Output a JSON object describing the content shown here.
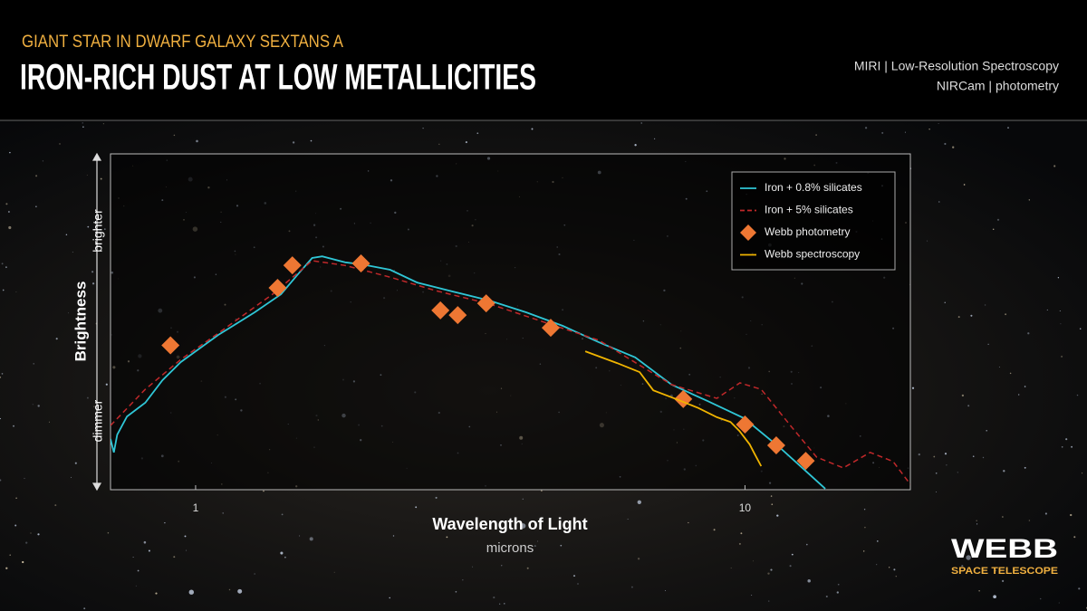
{
  "header": {
    "subtitle": "GIANT STAR IN DWARF GALAXY SEXTANS A",
    "title": "IRON-RICH DUST AT LOW METALLICITIES",
    "instruments": [
      "MIRI | Low-Resolution Spectroscopy",
      "NIRCam | photometry"
    ]
  },
  "logo": {
    "name": "WEBB",
    "tagline": "SPACE TELESCOPE"
  },
  "chart_data": {
    "type": "line",
    "x_label": "Wavelength of Light",
    "x_unit": "microns",
    "y_label": "Brightness",
    "y_high_label": "brighter",
    "y_low_label": "dimmer",
    "x_scale": "log",
    "xlim": [
      0.7,
      20
    ],
    "xticks": [
      1,
      10
    ],
    "ylim": [
      0,
      100
    ],
    "legend": "upper right",
    "series": [
      {
        "name": "Iron + 0.8% silicates",
        "color": "#2fc6d6",
        "line": "solid",
        "x": [
          0.7,
          0.71,
          0.72,
          0.75,
          0.81,
          0.87,
          0.94,
          1.1,
          1.28,
          1.43,
          1.54,
          1.63,
          1.7,
          1.87,
          2.01,
          2.26,
          2.53,
          2.94,
          3.43,
          4.0,
          4.66,
          5.42,
          6.31,
          7.35,
          8.55,
          9.96,
          11.6,
          14.0
        ],
        "values": [
          15.1,
          11.1,
          16.4,
          21.8,
          25.9,
          32.6,
          38.0,
          46.1,
          52.8,
          58.2,
          64.4,
          69.0,
          69.5,
          67.7,
          67.1,
          65.5,
          61.7,
          59.0,
          56.3,
          52.8,
          48.8,
          43.9,
          39.4,
          31.3,
          26.4,
          21.3,
          12.4,
          0.3
        ]
      },
      {
        "name": "Iron + 5% silicates",
        "color": "#c0282a",
        "line": "dashed",
        "x": [
          0.7,
          0.81,
          0.94,
          1.1,
          1.38,
          1.63,
          1.87,
          2.26,
          2.73,
          3.43,
          4.31,
          5.42,
          7.35,
          8.89,
          9.79,
          10.7,
          12.1,
          13.5,
          15.1,
          16.9,
          18.6,
          20
        ],
        "values": [
          19.1,
          29.9,
          38.8,
          46.6,
          58.2,
          68.2,
          66.8,
          63.3,
          59.3,
          55.3,
          49.9,
          44.5,
          31.3,
          27.2,
          31.8,
          29.9,
          19.1,
          9.7,
          6.5,
          11.1,
          8.4,
          1.6
        ]
      },
      {
        "name": "Webb photometry",
        "color": "#ee7733",
        "line": "none",
        "marker": "diamond",
        "x": [
          0.9,
          1.41,
          1.5,
          2.0,
          2.79,
          3.0,
          3.38,
          4.43,
          7.72,
          10.0,
          11.4,
          12.9
        ],
        "values": [
          43,
          60.1,
          66.8,
          67.4,
          53.4,
          52.0,
          55.5,
          48.2,
          27.0,
          19.4,
          13.2,
          8.6
        ]
      },
      {
        "name": "Webb spectroscopy",
        "color": "#f0b400",
        "line": "solid",
        "x": [
          5.12,
          5.85,
          6.43,
          6.81,
          7.49,
          8.23,
          8.89,
          9.41,
          9.77,
          10.2,
          10.4,
          10.7
        ],
        "values": [
          41.2,
          37.7,
          35.0,
          29.6,
          27.0,
          24.3,
          21.6,
          20.2,
          17.5,
          13.5,
          10.8,
          7.0
        ]
      }
    ]
  }
}
